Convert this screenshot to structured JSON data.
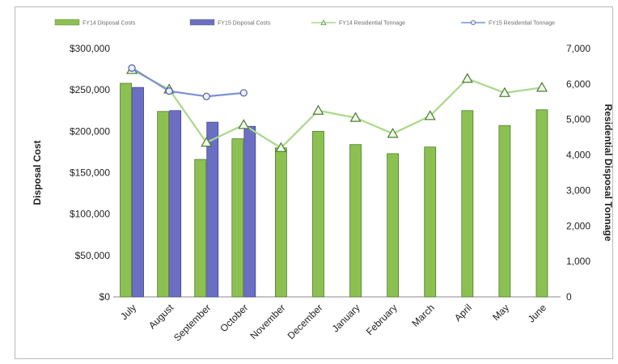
{
  "chart_data": {
    "type": "bar",
    "title": "",
    "categories": [
      "July",
      "August",
      "September",
      "October",
      "November",
      "December",
      "January",
      "February",
      "March",
      "April",
      "May",
      "June"
    ],
    "series": [
      {
        "name": "FY14 Disposal Costs",
        "kind": "bar",
        "axis": "left",
        "color": "#8cc152",
        "values": [
          258000,
          224000,
          166000,
          191000,
          180000,
          200000,
          184000,
          173000,
          181000,
          225000,
          207000,
          226000
        ]
      },
      {
        "name": "FY15 Disposal Costs",
        "kind": "bar",
        "axis": "left",
        "color": "#6b6fc4",
        "values": [
          253000,
          225000,
          211000,
          206000,
          null,
          null,
          null,
          null,
          null,
          null,
          null,
          null
        ]
      },
      {
        "name": "FY14 Residential Tonnage",
        "kind": "line",
        "axis": "right",
        "color": "#a9d98a",
        "marker": "triangle",
        "values": [
          6400,
          5850,
          4350,
          4850,
          4200,
          5250,
          5050,
          4600,
          5100,
          6150,
          5750,
          5900
        ]
      },
      {
        "name": "FY15 Residential Tonnage",
        "kind": "line",
        "axis": "right",
        "color": "#7a8fd6",
        "marker": "circle",
        "values": [
          6450,
          5800,
          5650,
          5750,
          null,
          null,
          null,
          null,
          null,
          null,
          null,
          null
        ]
      }
    ],
    "yleft": {
      "label": "Disposal Cost",
      "lim": [
        0,
        300000
      ],
      "ticks": [
        "$0",
        "$50,000",
        "$100,000",
        "$150,000",
        "$200,000",
        "$250,000",
        "$300,000"
      ]
    },
    "yright": {
      "label": "Residential Disposal Tonnage",
      "lim": [
        0,
        7000
      ],
      "ticks": [
        "0",
        "1,000",
        "2,000",
        "3,000",
        "4,000",
        "5,000",
        "6,000",
        "7,000"
      ]
    },
    "legend": "top",
    "grid": false
  }
}
